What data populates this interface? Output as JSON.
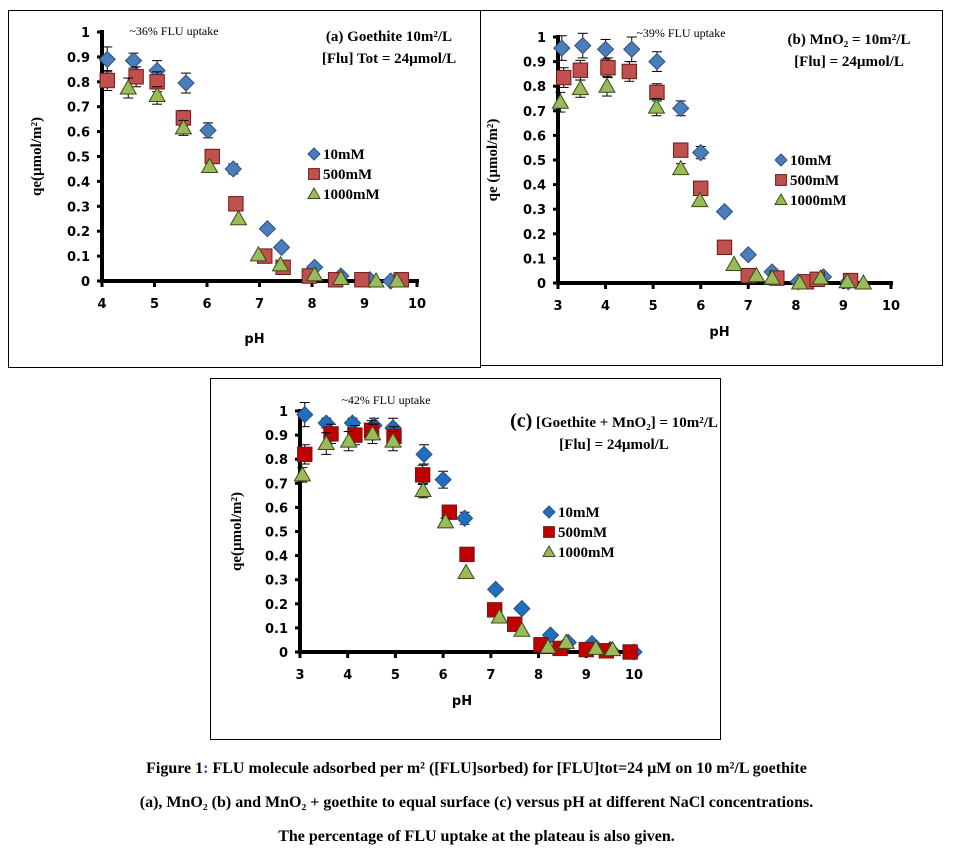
{
  "chart_data": [
    {
      "type": "scatter",
      "id": "a",
      "title_lines": [
        "(a) Goethite 10m²/L",
        "[Flu] Tot = 24µmol/L"
      ],
      "annotation": "~36% FLU uptake",
      "xlabel": "pH",
      "ylabel": "qe(µmol/m²)",
      "xlim": [
        4,
        10
      ],
      "ylim": [
        0,
        1
      ],
      "xticks": [
        "4",
        "5",
        "6",
        "7",
        "8",
        "9",
        "10"
      ],
      "yticks": [
        "0",
        "0.1",
        "0.2",
        "0.3",
        "0.4",
        "0.5",
        "0.6",
        "0.7",
        "0.8",
        "0.9",
        "1"
      ],
      "legend": "right",
      "series": [
        {
          "name": "10mM",
          "marker": "diamond",
          "color": "#4a7ebb",
          "x": [
            4.1,
            4.6,
            5.05,
            5.6,
            6.02,
            6.5,
            7.15,
            7.42,
            8.05,
            8.55,
            9.1,
            9.5
          ],
          "y": [
            0.89,
            0.885,
            0.845,
            0.795,
            0.605,
            0.45,
            0.21,
            0.135,
            0.055,
            0.02,
            0.005,
            0.0
          ],
          "err": [
            0.05,
            0.03,
            0.04,
            0.04,
            0.03,
            0.02,
            0,
            0,
            0,
            0,
            0,
            0
          ]
        },
        {
          "name": "500mM",
          "marker": "square",
          "color": "#c0504d",
          "x": [
            4.1,
            4.65,
            5.05,
            5.55,
            6.1,
            6.55,
            7.1,
            7.45,
            7.95,
            8.45,
            8.95,
            9.7
          ],
          "y": [
            0.805,
            0.82,
            0.8,
            0.655,
            0.5,
            0.31,
            0.1,
            0.055,
            0.02,
            0.005,
            0.005,
            0.005
          ],
          "err": [
            0.04,
            0.04,
            0.04,
            0.03,
            0,
            0,
            0,
            0,
            0,
            0,
            0,
            0
          ]
        },
        {
          "name": "1000mM",
          "marker": "triangle",
          "color": "#9bbb59",
          "x": [
            4.5,
            5.05,
            5.55,
            6.05,
            6.6,
            6.98,
            7.4,
            8.05,
            8.55,
            9.22,
            9.62
          ],
          "y": [
            0.775,
            0.745,
            0.615,
            0.46,
            0.25,
            0.105,
            0.065,
            0.025,
            0.01,
            0.0,
            0.0
          ],
          "err": [
            0.04,
            0.035,
            0.03,
            0,
            0,
            0,
            0,
            0,
            0,
            0,
            0
          ]
        }
      ]
    },
    {
      "type": "scatter",
      "id": "b",
      "title_lines": [
        "(b) MnO₂ = 10m²/L",
        "[Flu] = 24µmol/L"
      ],
      "annotation": "~39% FLU uptake",
      "xlabel": "pH",
      "ylabel": "qe (µmol/m²)",
      "xlim": [
        3,
        10
      ],
      "ylim": [
        0,
        1
      ],
      "xticks": [
        "3",
        "4",
        "5",
        "6",
        "7",
        "8",
        "9",
        "10"
      ],
      "yticks": [
        "0",
        "0.1",
        "0.2",
        "0.3",
        "0.4",
        "0.5",
        "0.6",
        "0.7",
        "0.8",
        "0.9",
        "1"
      ],
      "legend": "right",
      "series": [
        {
          "name": "10mM",
          "marker": "diamond",
          "color": "#4a7ebb",
          "x": [
            3.08,
            3.52,
            4.0,
            4.55,
            5.08,
            5.58,
            6.0,
            6.5,
            7.0,
            7.5,
            8.05,
            8.58,
            9.1
          ],
          "y": [
            0.955,
            0.965,
            0.95,
            0.95,
            0.9,
            0.71,
            0.53,
            0.29,
            0.115,
            0.045,
            0.005,
            0.025,
            0.005
          ],
          "err": [
            0.05,
            0.05,
            0.04,
            0.05,
            0.04,
            0.03,
            0.025,
            0,
            0,
            0,
            0,
            0,
            0
          ]
        },
        {
          "name": "500mM",
          "marker": "square",
          "color": "#c0504d",
          "x": [
            3.12,
            3.47,
            4.05,
            4.5,
            5.08,
            5.58,
            6.0,
            6.5,
            7.0,
            7.6,
            8.22,
            8.45,
            9.15
          ],
          "y": [
            0.835,
            0.865,
            0.875,
            0.86,
            0.775,
            0.54,
            0.385,
            0.145,
            0.03,
            0.02,
            0.005,
            0.015,
            0.01
          ],
          "err": [
            0.04,
            0.04,
            0.04,
            0.04,
            0.035,
            0.02,
            0,
            0,
            0,
            0,
            0,
            0,
            0
          ]
        },
        {
          "name": "1000mM",
          "marker": "triangle",
          "color": "#9bbb59",
          "x": [
            3.05,
            3.47,
            4.03,
            5.07,
            5.58,
            5.98,
            6.7,
            7.17,
            7.5,
            8.08,
            8.52,
            9.08,
            9.42
          ],
          "y": [
            0.735,
            0.79,
            0.8,
            0.715,
            0.465,
            0.335,
            0.075,
            0.03,
            0.02,
            0.0,
            0.02,
            0.005,
            0.0
          ],
          "err": [
            0.04,
            0.035,
            0.04,
            0.035,
            0.02,
            0,
            0,
            0,
            0,
            0,
            0,
            0,
            0
          ]
        }
      ]
    },
    {
      "type": "scatter",
      "id": "c",
      "title_lines": [
        "(c) [Goethite + MnO₂] = 10m²/L",
        "[Flu] = 24µmol/L"
      ],
      "annotation": "~42% FLU uptake",
      "xlabel": "pH",
      "ylabel": "qe(µmol/m²)",
      "xlim": [
        3,
        10
      ],
      "ylim": [
        0,
        1
      ],
      "xticks": [
        "3",
        "4",
        "5",
        "6",
        "7",
        "8",
        "9",
        "10"
      ],
      "yticks": [
        "0",
        "0.1",
        "0.2",
        "0.3",
        "0.4",
        "0.5",
        "0.6",
        "0.7",
        "0.8",
        "0.9",
        "1"
      ],
      "legend": "right",
      "series": [
        {
          "name": "10mM",
          "marker": "diamond",
          "color": "#1f6fbf",
          "x": [
            3.1,
            3.55,
            4.1,
            4.55,
            4.95,
            5.6,
            6.0,
            6.45,
            7.1,
            7.65,
            8.25,
            8.62,
            9.12,
            9.5,
            10.0
          ],
          "y": [
            0.985,
            0.95,
            0.95,
            0.94,
            0.93,
            0.82,
            0.715,
            0.555,
            0.26,
            0.18,
            0.07,
            0.04,
            0.035,
            0.01,
            0.0
          ],
          "err": [
            0.05,
            0.02,
            0.02,
            0.03,
            0.04,
            0.04,
            0.035,
            0.025,
            0,
            0,
            0,
            0,
            0,
            0,
            0
          ]
        },
        {
          "name": "500mM",
          "marker": "square",
          "color": "#c00000",
          "x": [
            3.1,
            3.65,
            4.15,
            4.5,
            4.97,
            5.57,
            6.13,
            6.5,
            7.08,
            7.5,
            8.05,
            8.45,
            9.0,
            9.42,
            9.92
          ],
          "y": [
            0.82,
            0.905,
            0.9,
            0.92,
            0.895,
            0.735,
            0.58,
            0.405,
            0.175,
            0.115,
            0.03,
            0.015,
            0.01,
            0.005,
            0.0
          ],
          "err": [
            0.04,
            0.04,
            0.04,
            0.04,
            0.04,
            0.04,
            0.02,
            0,
            0,
            0,
            0,
            0,
            0,
            0,
            0
          ]
        },
        {
          "name": "1000mM",
          "marker": "triangle",
          "color": "#9bbb59",
          "x": [
            3.05,
            3.55,
            4.02,
            4.52,
            4.95,
            5.58,
            6.05,
            6.48,
            7.18,
            7.65,
            8.2,
            8.58,
            9.2,
            9.55
          ],
          "y": [
            0.735,
            0.865,
            0.875,
            0.905,
            0.875,
            0.67,
            0.54,
            0.33,
            0.145,
            0.09,
            0.02,
            0.04,
            0.015,
            0.01
          ],
          "err": [
            0.03,
            0.045,
            0.04,
            0.04,
            0.04,
            0.03,
            0.015,
            0,
            0,
            0,
            0,
            0,
            0,
            0
          ]
        }
      ]
    }
  ],
  "caption": {
    "line1_prefix": "Figure 1",
    "line1_colon": ":",
    "line1_rest": " FLU molecule adsorbed per m² ([FLU]sorbed) for [FLU]tot=24 µM on 10 m²/L goethite",
    "line2": "(a), MnO₂ (b) and MnO₂ + goethite to equal surface (c) versus pH at different NaCl concentrations.",
    "line3": "The percentage of FLU uptake at the plateau is also given."
  }
}
